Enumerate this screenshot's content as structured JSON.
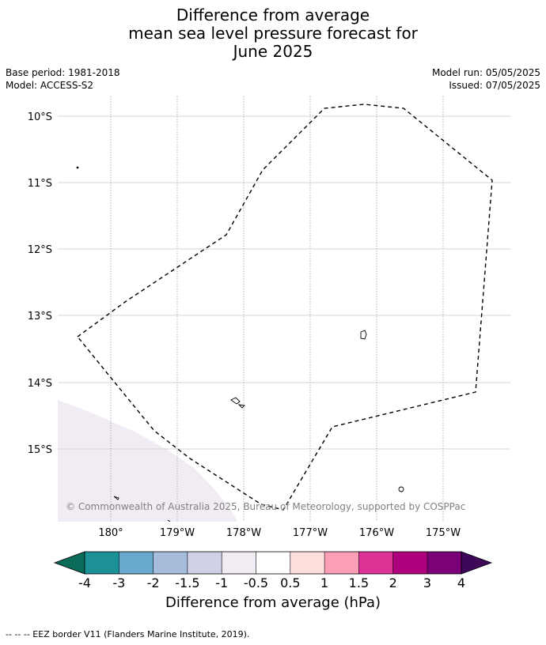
{
  "title": {
    "line1": "Difference from average",
    "line2": "mean sea level pressure forecast for",
    "line3": "June 2025"
  },
  "meta": {
    "base_period": "Base period: 1981-2018",
    "model": "Model: ACCESS-S2",
    "model_run": "Model run: 05/05/2025",
    "issued": "Issued: 07/05/2025"
  },
  "map": {
    "lat_labels": [
      "10°S",
      "11°S",
      "12°S",
      "13°S",
      "14°S",
      "15°S"
    ],
    "lon_labels": [
      "180°",
      "179°W",
      "178°W",
      "177°W",
      "176°W",
      "175°W"
    ],
    "copyright": "© Commonwealth of Australia 2025, Bureau of Meteorology, supported by COSPPac",
    "anomaly_fill_color": "#f1ebf3",
    "eez_line_color": "#000000"
  },
  "colorbar": {
    "title": "Difference from average (hPa)",
    "tick_labels": [
      "-4",
      "-3",
      "-2",
      "-1.5",
      "-1",
      "-0.5",
      "0.5",
      "1",
      "1.5",
      "2",
      "3",
      "4"
    ],
    "low_extend_color": "#0b6b5b",
    "high_extend_color": "#3e0759",
    "colors": [
      "#1c9097",
      "#67a9cf",
      "#a6bddb",
      "#d0d1e6",
      "#f1ebf3",
      "#ffffff",
      "#fde0dd",
      "#fa9fb5",
      "#dd3497",
      "#ae017e",
      "#7a0177"
    ]
  },
  "footer": {
    "legend_text": "--  --  -- EEZ border V11 (Flanders Marine Institute, 2019)."
  }
}
